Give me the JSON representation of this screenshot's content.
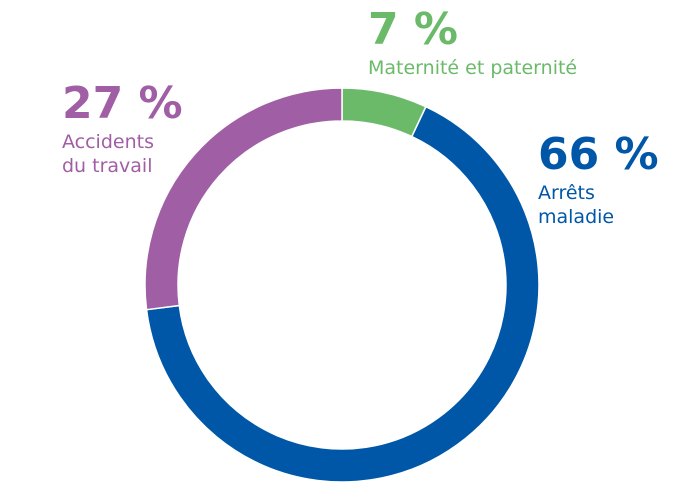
{
  "chart_data": {
    "type": "pie",
    "donut": true,
    "start": "top",
    "direction": "clockwise",
    "slices": [
      {
        "label": "Maternité et paternité",
        "value": 7,
        "display": "7 %",
        "color": "#6bba6a"
      },
      {
        "label": "Arrêts maladie",
        "value": 66,
        "display": "66 %",
        "color": "#0057a8",
        "label_lines": [
          "Arrêts",
          "maladie"
        ]
      },
      {
        "label": "Accidents du travail",
        "value": 27,
        "display": "27 %",
        "color": "#a05fa5",
        "label_lines": [
          "Accidents",
          "du travail"
        ]
      }
    ]
  }
}
